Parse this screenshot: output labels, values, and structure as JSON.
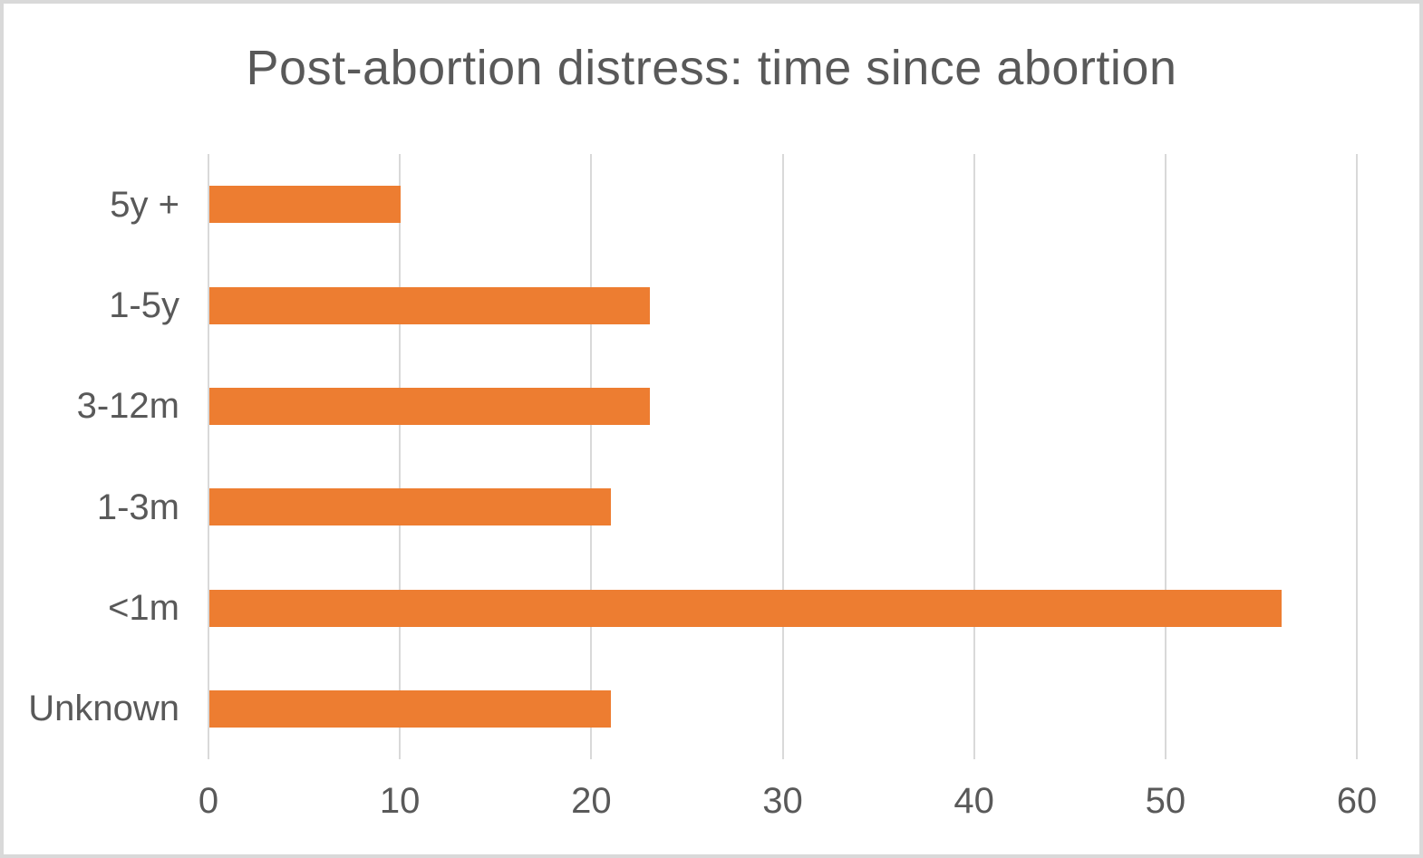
{
  "chart_data": {
    "type": "bar",
    "orientation": "horizontal",
    "title": "Post-abortion distress: time since abortion",
    "categories": [
      "5y +",
      "1-5y",
      "3-12m",
      "1-3m",
      "<1m",
      "Unknown"
    ],
    "values": [
      10,
      23,
      23,
      21,
      56,
      21
    ],
    "x_tick_labels": [
      "0",
      "10",
      "20",
      "30",
      "40",
      "50",
      "60"
    ],
    "xlim": [
      0,
      60
    ],
    "xlabel": "",
    "ylabel": "",
    "grid": "vertical-only",
    "legend": "none",
    "colors": {
      "bar": "#ed7d31",
      "text": "#595959",
      "gridline": "#d9d9d9",
      "frame_border": "#d9d9d9",
      "background": "#ffffff"
    }
  }
}
